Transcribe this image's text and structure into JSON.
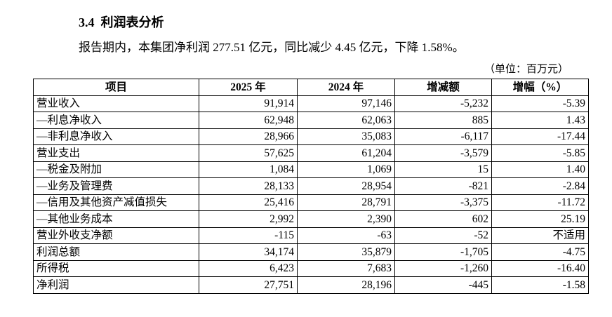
{
  "header": {
    "title": "3.4  利润表分析",
    "summary": "报告期内，本集团净利润 277.51 亿元，同比减少 4.45 亿元，下降 1.58%。",
    "unit": "（单位：百万元）"
  },
  "table": {
    "columns": [
      "项目",
      "2025 年",
      "2024 年",
      "增减额",
      "增幅（%）"
    ],
    "rows": [
      [
        "营业收入",
        "91,914",
        "97,146",
        "-5,232",
        "-5.39"
      ],
      [
        "—利息净收入",
        "62,948",
        "62,063",
        "885",
        "1.43"
      ],
      [
        "—非利息净收入",
        "28,966",
        "35,083",
        "-6,117",
        "-17.44"
      ],
      [
        "营业支出",
        "57,625",
        "61,204",
        "-3,579",
        "-5.85"
      ],
      [
        "—税金及附加",
        "1,084",
        "1,069",
        "15",
        "1.40"
      ],
      [
        "—业务及管理费",
        "28,133",
        "28,954",
        "-821",
        "-2.84"
      ],
      [
        "—信用及其他资产减值损失",
        "25,416",
        "28,791",
        "-3,375",
        "-11.72"
      ],
      [
        "—其他业务成本",
        "2,992",
        "2,390",
        "602",
        "25.19"
      ],
      [
        "营业外收支净额",
        "-115",
        "-63",
        "-52",
        "不适用"
      ],
      [
        "利润总额",
        "34,174",
        "35,879",
        "-1,705",
        "-4.75"
      ],
      [
        "所得税",
        "6,423",
        "7,683",
        "-1,260",
        "-16.40"
      ],
      [
        "净利润",
        "27,751",
        "28,196",
        "-445",
        "-1.58"
      ]
    ]
  }
}
